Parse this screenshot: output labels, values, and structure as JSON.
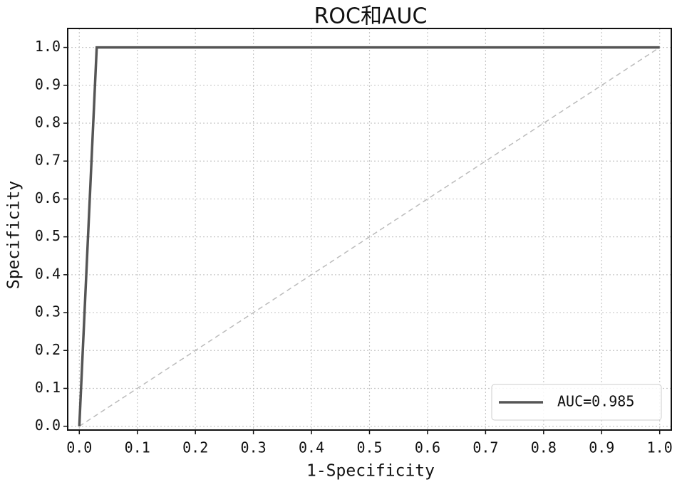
{
  "chart_data": {
    "type": "line",
    "title": "ROC和AUC",
    "x_label": "1-Specificity",
    "y_label": "Specificity",
    "xlim": [
      -0.02,
      1.02
    ],
    "ylim": [
      -0.01,
      1.05
    ],
    "xticks": [
      {
        "value": 0,
        "label": "0.0"
      },
      0.1,
      0.2,
      0.3,
      0.4,
      0.5,
      0.6,
      0.7,
      0.8,
      0.9,
      {
        "value": 1,
        "label": "1.0"
      }
    ],
    "yticks": [
      {
        "value": 0,
        "label": "0.0"
      },
      0.1,
      0.2,
      0.3,
      0.4,
      0.5,
      0.6,
      0.7,
      0.8,
      0.9,
      {
        "value": 1,
        "label": "1.0"
      }
    ],
    "grid": true,
    "legend": "lower right",
    "series": [
      {
        "name": "AUC=0.985",
        "color": "#555555",
        "x": [
          0,
          0.03,
          1
        ],
        "values": [
          0,
          1,
          1
        ]
      },
      {
        "color": "#bbbbbb",
        "linestyle": "dashed",
        "x": [
          0,
          1
        ],
        "values": [
          0,
          1
        ]
      }
    ]
  }
}
